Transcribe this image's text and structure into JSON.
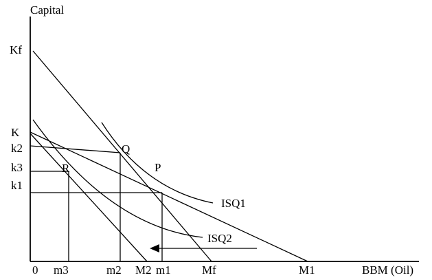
{
  "axes": {
    "y_label": "Capital",
    "x_label": "BBM (Oil)",
    "origin": "0"
  },
  "y_ticks": {
    "kf": "Kf",
    "k": "K",
    "k2": "k2",
    "k3": "k3",
    "k1": "k1"
  },
  "x_ticks": {
    "m3": "m3",
    "m2": "m2",
    "big_m2": "M2",
    "m1": "m1",
    "mf": "Mf",
    "big_m1": "M1"
  },
  "points": {
    "q": "Q",
    "p": "P",
    "r": "R"
  },
  "curves": {
    "isq1": "ISQ1",
    "isq2": "ISQ2"
  },
  "colors": {
    "line": "#000000",
    "background": "#ffffff"
  }
}
